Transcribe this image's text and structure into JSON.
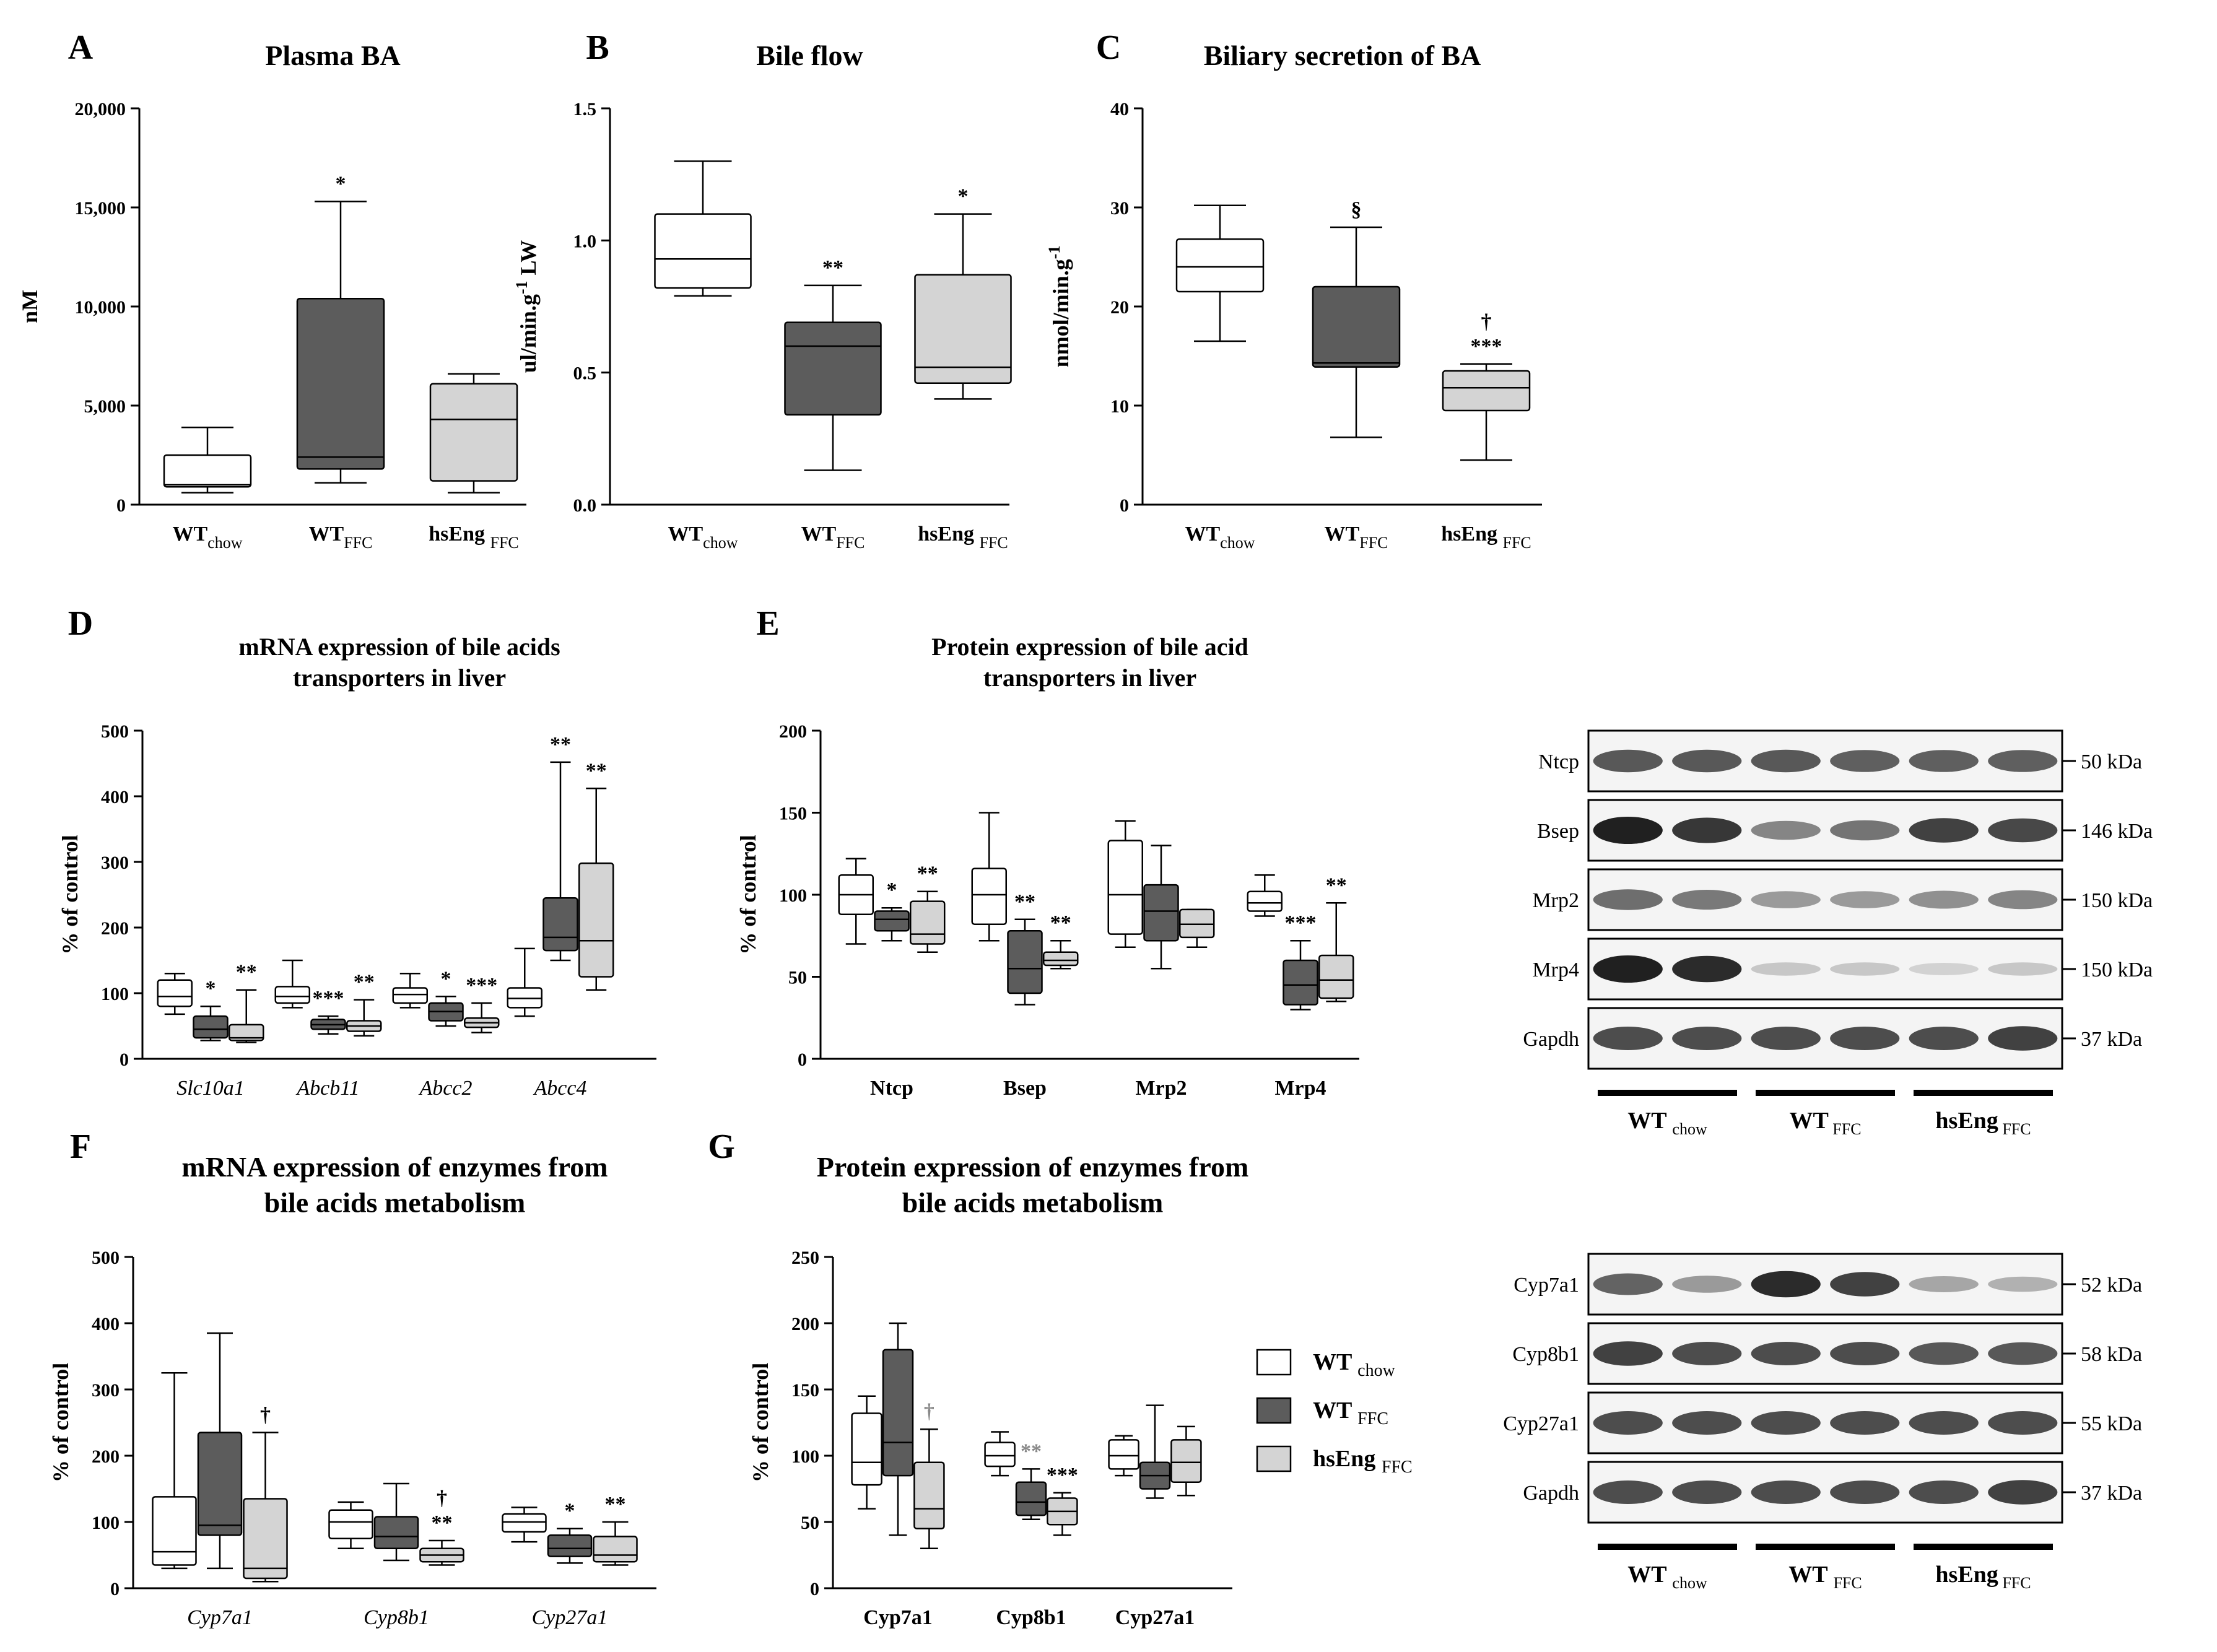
{
  "figure": {
    "labels": {
      "A": "A",
      "B": "B",
      "C": "C",
      "D": "D",
      "E": "E",
      "F": "F",
      "G": "G"
    },
    "legend": {
      "items": [
        {
          "name": "WT",
          "sub": "chow",
          "fill": "#ffffff"
        },
        {
          "name": "WT",
          "sub": "FFC",
          "fill": "#5c5c5c"
        },
        {
          "name": "hsEng",
          "sub": "FFC",
          "fill": "#d4d4d4"
        }
      ]
    },
    "colors": {
      "white": "#ffffff",
      "dark": "#5c5c5c",
      "light": "#d4d4d4",
      "stroke": "#000000"
    }
  },
  "chart_data": [
    {
      "id": "A",
      "type": "box",
      "title": "Plasma BA",
      "ylabel": "nM",
      "ylim": [
        0,
        20000
      ],
      "yticks": [
        0,
        5000,
        10000,
        15000,
        20000
      ],
      "ytick_labels": [
        "0",
        "5,000",
        "10,000",
        "15,000",
        "20,000"
      ],
      "groups": [
        {
          "label": "WT",
          "sub": "chow",
          "boxes": [
            {
              "fill": "white",
              "min": 600,
              "q1": 900,
              "med": 1000,
              "q3": 2500,
              "max": 3900,
              "mark": ""
            }
          ]
        },
        {
          "label": "WT",
          "sub": "FFC",
          "boxes": [
            {
              "fill": "dark",
              "min": 1100,
              "q1": 1800,
              "med": 2400,
              "q3": 10400,
              "max": 15300,
              "mark": "*"
            }
          ]
        },
        {
          "label": "hsEng ",
          "sub": "FFC",
          "boxes": [
            {
              "fill": "light",
              "min": 600,
              "q1": 1200,
              "med": 4300,
              "q3": 6100,
              "max": 6600,
              "mark": ""
            }
          ]
        }
      ]
    },
    {
      "id": "B",
      "type": "box",
      "title": "Bile flow",
      "ylabel": "ul/min.g-1 LW",
      "ylim": [
        0,
        1.5
      ],
      "yticks": [
        0,
        0.5,
        1.0,
        1.5
      ],
      "ytick_labels": [
        "0.0",
        "0.5",
        "1.0",
        "1.5"
      ],
      "groups": [
        {
          "label": "WT",
          "sub": "chow",
          "boxes": [
            {
              "fill": "white",
              "min": 0.79,
              "q1": 0.82,
              "med": 0.93,
              "q3": 1.1,
              "max": 1.3,
              "mark": ""
            }
          ]
        },
        {
          "label": "WT",
          "sub": "FFC",
          "boxes": [
            {
              "fill": "dark",
              "min": 0.13,
              "q1": 0.34,
              "med": 0.6,
              "q3": 0.69,
              "max": 0.83,
              "mark": "**"
            }
          ]
        },
        {
          "label": "hsEng ",
          "sub": "FFC",
          "boxes": [
            {
              "fill": "light",
              "min": 0.4,
              "q1": 0.46,
              "med": 0.52,
              "q3": 0.87,
              "max": 1.1,
              "mark": "*"
            }
          ]
        }
      ]
    },
    {
      "id": "C",
      "type": "box",
      "title": "Biliary secretion of BA",
      "ylabel": "nmol/min.g-1",
      "ylim": [
        0,
        40
      ],
      "yticks": [
        0,
        10,
        20,
        30,
        40
      ],
      "ytick_labels": [
        "0",
        "10",
        "20",
        "30",
        "40"
      ],
      "groups": [
        {
          "label": "WT",
          "sub": "chow",
          "boxes": [
            {
              "fill": "white",
              "min": 16.5,
              "q1": 21.5,
              "med": 24.0,
              "q3": 26.8,
              "max": 30.2,
              "mark": ""
            }
          ]
        },
        {
          "label": "WT",
          "sub": "FFC",
          "boxes": [
            {
              "fill": "dark",
              "min": 6.8,
              "q1": 13.9,
              "med": 14.3,
              "q3": 22.0,
              "max": 28.0,
              "mark": "§"
            }
          ]
        },
        {
          "label": "hsEng ",
          "sub": "FFC",
          "boxes": [
            {
              "fill": "light",
              "min": 4.5,
              "q1": 9.5,
              "med": 11.8,
              "q3": 13.5,
              "max": 14.2,
              "mark": "***",
              "mark2": "†"
            }
          ]
        }
      ]
    },
    {
      "id": "D",
      "type": "box",
      "title": "mRNA expression of bile acids transporters in liver",
      "ylabel": "% of control",
      "ylim": [
        0,
        500
      ],
      "yticks": [
        0,
        100,
        200,
        300,
        400,
        500
      ],
      "ytick_labels": [
        "0",
        "100",
        "200",
        "300",
        "400",
        "500"
      ],
      "italic_x": true,
      "groups": [
        {
          "label": "Slc10a1",
          "boxes": [
            {
              "fill": "white",
              "min": 68,
              "q1": 80,
              "med": 95,
              "q3": 120,
              "max": 130,
              "mark": ""
            },
            {
              "fill": "dark",
              "min": 28,
              "q1": 32,
              "med": 45,
              "q3": 65,
              "max": 80,
              "mark": "*"
            },
            {
              "fill": "light",
              "min": 25,
              "q1": 28,
              "med": 32,
              "q3": 52,
              "max": 105,
              "mark": "**"
            }
          ]
        },
        {
          "label": "Abcb11",
          "boxes": [
            {
              "fill": "white",
              "min": 78,
              "q1": 85,
              "med": 95,
              "q3": 110,
              "max": 150,
              "mark": ""
            },
            {
              "fill": "dark",
              "min": 38,
              "q1": 45,
              "med": 52,
              "q3": 60,
              "max": 65,
              "mark": "***"
            },
            {
              "fill": "light",
              "min": 35,
              "q1": 42,
              "med": 50,
              "q3": 58,
              "max": 90,
              "mark": "**"
            }
          ]
        },
        {
          "label": "Abcc2",
          "boxes": [
            {
              "fill": "white",
              "min": 78,
              "q1": 85,
              "med": 98,
              "q3": 108,
              "max": 130,
              "mark": ""
            },
            {
              "fill": "dark",
              "min": 50,
              "q1": 58,
              "med": 72,
              "q3": 85,
              "max": 95,
              "mark": "*"
            },
            {
              "fill": "light",
              "min": 40,
              "q1": 48,
              "med": 55,
              "q3": 62,
              "max": 85,
              "mark": "***"
            }
          ]
        },
        {
          "label": "Abcc4",
          "boxes": [
            {
              "fill": "white",
              "min": 65,
              "q1": 78,
              "med": 92,
              "q3": 108,
              "max": 168,
              "mark": ""
            },
            {
              "fill": "dark",
              "min": 150,
              "q1": 165,
              "med": 185,
              "q3": 245,
              "max": 452,
              "mark": "**"
            },
            {
              "fill": "light",
              "min": 105,
              "q1": 125,
              "med": 180,
              "q3": 298,
              "max": 412,
              "mark": "**"
            }
          ]
        }
      ]
    },
    {
      "id": "E",
      "type": "box",
      "title": "Protein expression of bile acid transporters in liver",
      "ylabel": "% of control",
      "ylim": [
        0,
        200
      ],
      "yticks": [
        0,
        50,
        100,
        150,
        200
      ],
      "ytick_labels": [
        "0",
        "50",
        "100",
        "150",
        "200"
      ],
      "groups": [
        {
          "label": "Ntcp",
          "boxes": [
            {
              "fill": "white",
              "min": 70,
              "q1": 88,
              "med": 100,
              "q3": 112,
              "max": 122,
              "mark": ""
            },
            {
              "fill": "dark",
              "min": 72,
              "q1": 78,
              "med": 85,
              "q3": 90,
              "max": 92,
              "mark": "*"
            },
            {
              "fill": "light",
              "min": 65,
              "q1": 70,
              "med": 76,
              "q3": 96,
              "max": 102,
              "mark": "**"
            }
          ]
        },
        {
          "label": "Bsep",
          "boxes": [
            {
              "fill": "white",
              "min": 72,
              "q1": 82,
              "med": 100,
              "q3": 116,
              "max": 150,
              "mark": ""
            },
            {
              "fill": "dark",
              "min": 33,
              "q1": 40,
              "med": 55,
              "q3": 78,
              "max": 85,
              "mark": "**"
            },
            {
              "fill": "light",
              "min": 55,
              "q1": 57,
              "med": 60,
              "q3": 65,
              "max": 72,
              "mark": "**"
            }
          ]
        },
        {
          "label": "Mrp2",
          "boxes": [
            {
              "fill": "white",
              "min": 68,
              "q1": 76,
              "med": 100,
              "q3": 133,
              "max": 145,
              "mark": ""
            },
            {
              "fill": "dark",
              "min": 55,
              "q1": 72,
              "med": 90,
              "q3": 106,
              "max": 130,
              "mark": ""
            },
            {
              "fill": "light",
              "min": 68,
              "q1": 74,
              "med": 82,
              "q3": 91,
              "max": 91,
              "mark": ""
            }
          ]
        },
        {
          "label": "Mrp4",
          "boxes": [
            {
              "fill": "white",
              "min": 87,
              "q1": 90,
              "med": 95,
              "q3": 102,
              "max": 112,
              "mark": ""
            },
            {
              "fill": "dark",
              "min": 30,
              "q1": 33,
              "med": 45,
              "q3": 60,
              "max": 72,
              "mark": "***"
            },
            {
              "fill": "light",
              "min": 35,
              "q1": 37,
              "med": 48,
              "q3": 63,
              "max": 95,
              "mark": "**"
            }
          ]
        }
      ]
    },
    {
      "id": "F",
      "type": "box",
      "title": "mRNA expression of enzymes from bile acids metabolism",
      "ylabel": "% of control",
      "ylim": [
        0,
        500
      ],
      "yticks": [
        0,
        100,
        200,
        300,
        400,
        500
      ],
      "ytick_labels": [
        "0",
        "100",
        "200",
        "300",
        "400",
        "500"
      ],
      "italic_x": true,
      "groups": [
        {
          "label": "Cyp7a1",
          "boxes": [
            {
              "fill": "white",
              "min": 30,
              "q1": 35,
              "med": 55,
              "q3": 138,
              "max": 325,
              "mark": ""
            },
            {
              "fill": "dark",
              "min": 30,
              "q1": 80,
              "med": 95,
              "q3": 235,
              "max": 385,
              "mark": ""
            },
            {
              "fill": "light",
              "min": 10,
              "q1": 15,
              "med": 30,
              "q3": 135,
              "max": 235,
              "mark": "†"
            }
          ]
        },
        {
          "label": "Cyp8b1",
          "boxes": [
            {
              "fill": "white",
              "min": 60,
              "q1": 75,
              "med": 100,
              "q3": 118,
              "max": 130,
              "mark": ""
            },
            {
              "fill": "dark",
              "min": 42,
              "q1": 60,
              "med": 78,
              "q3": 108,
              "max": 158,
              "mark": ""
            },
            {
              "fill": "light",
              "min": 35,
              "q1": 40,
              "med": 50,
              "q3": 60,
              "max": 72,
              "mark": "**",
              "mark2": "†"
            }
          ]
        },
        {
          "label": "Cyp27a1",
          "boxes": [
            {
              "fill": "white",
              "min": 70,
              "q1": 85,
              "med": 100,
              "q3": 112,
              "max": 122,
              "mark": ""
            },
            {
              "fill": "dark",
              "min": 38,
              "q1": 48,
              "med": 60,
              "q3": 80,
              "max": 90,
              "mark": "*"
            },
            {
              "fill": "light",
              "min": 35,
              "q1": 40,
              "med": 50,
              "q3": 78,
              "max": 100,
              "mark": "**"
            }
          ]
        }
      ]
    },
    {
      "id": "G",
      "type": "box",
      "title": "Protein expression of enzymes from bile acids metabolism",
      "ylabel": "% of control",
      "ylim": [
        0,
        250
      ],
      "yticks": [
        0,
        50,
        100,
        150,
        200,
        250
      ],
      "ytick_labels": [
        "0",
        "50",
        "100",
        "150",
        "200",
        "250"
      ],
      "groups": [
        {
          "label": "Cyp7a1",
          "boxes": [
            {
              "fill": "white",
              "min": 60,
              "q1": 78,
              "med": 95,
              "q3": 132,
              "max": 145,
              "mark": ""
            },
            {
              "fill": "dark",
              "min": 40,
              "q1": 85,
              "med": 110,
              "q3": 180,
              "max": 200,
              "mark": ""
            },
            {
              "fill": "light",
              "min": 30,
              "q1": 45,
              "med": 60,
              "q3": 95,
              "max": 120,
              "mark": "†"
            }
          ]
        },
        {
          "label": "Cyp8b1",
          "boxes": [
            {
              "fill": "white",
              "min": 85,
              "q1": 92,
              "med": 100,
              "q3": 110,
              "max": 118,
              "mark": ""
            },
            {
              "fill": "dark",
              "min": 52,
              "q1": 55,
              "med": 65,
              "q3": 80,
              "max": 90,
              "mark": "**"
            },
            {
              "fill": "light",
              "min": 40,
              "q1": 48,
              "med": 58,
              "q3": 68,
              "max": 72,
              "mark": "***"
            }
          ]
        },
        {
          "label": "Cyp27a1",
          "boxes": [
            {
              "fill": "white",
              "min": 85,
              "q1": 90,
              "med": 100,
              "q3": 112,
              "max": 115,
              "mark": ""
            },
            {
              "fill": "dark",
              "min": 68,
              "q1": 75,
              "med": 85,
              "q3": 95,
              "max": 138,
              "mark": ""
            },
            {
              "fill": "light",
              "min": 70,
              "q1": 80,
              "med": 95,
              "q3": 112,
              "max": 122,
              "mark": ""
            }
          ]
        }
      ]
    }
  ],
  "blots": [
    {
      "id": "E-blot",
      "rows": [
        {
          "name": "Ntcp",
          "kda": "50 kDa",
          "intensity": [
            0.75,
            0.75,
            0.75,
            0.72,
            0.72,
            0.72
          ]
        },
        {
          "name": "Bsep",
          "kda": "146 kDa",
          "intensity": [
            1.0,
            0.9,
            0.55,
            0.62,
            0.85,
            0.82
          ]
        },
        {
          "name": "Mrp2",
          "kda": "150 kDa",
          "intensity": [
            0.65,
            0.6,
            0.45,
            0.45,
            0.5,
            0.55
          ]
        },
        {
          "name": "Mrp4",
          "kda": "150 kDa",
          "intensity": [
            1.0,
            0.95,
            0.25,
            0.25,
            0.2,
            0.25
          ]
        },
        {
          "name": "Gapdh",
          "kda": "37 kDa",
          "intensity": [
            0.8,
            0.8,
            0.8,
            0.8,
            0.8,
            0.85
          ]
        }
      ],
      "groups": [
        {
          "name": "WT ",
          "sub": "chow"
        },
        {
          "name": "WT",
          "sub": "FFC"
        },
        {
          "name": "hsEng",
          "sub": "FFC"
        }
      ]
    },
    {
      "id": "G-blot",
      "rows": [
        {
          "name": "Cyp7a1",
          "kda": "52 kDa",
          "intensity": [
            0.7,
            0.45,
            0.95,
            0.85,
            0.4,
            0.35
          ]
        },
        {
          "name": "Cyp8b1",
          "kda": "58 kDa",
          "intensity": [
            0.85,
            0.8,
            0.8,
            0.8,
            0.75,
            0.75
          ]
        },
        {
          "name": "Cyp27a1",
          "kda": "55 kDa",
          "intensity": [
            0.8,
            0.8,
            0.8,
            0.8,
            0.8,
            0.8
          ]
        },
        {
          "name": "Gapdh",
          "kda": "37 kDa",
          "intensity": [
            0.8,
            0.8,
            0.8,
            0.8,
            0.8,
            0.85
          ]
        }
      ],
      "groups": [
        {
          "name": "WT ",
          "sub": "chow"
        },
        {
          "name": "WT ",
          "sub": "FFC"
        },
        {
          "name": "hsEng",
          "sub": "FFC"
        }
      ]
    }
  ]
}
